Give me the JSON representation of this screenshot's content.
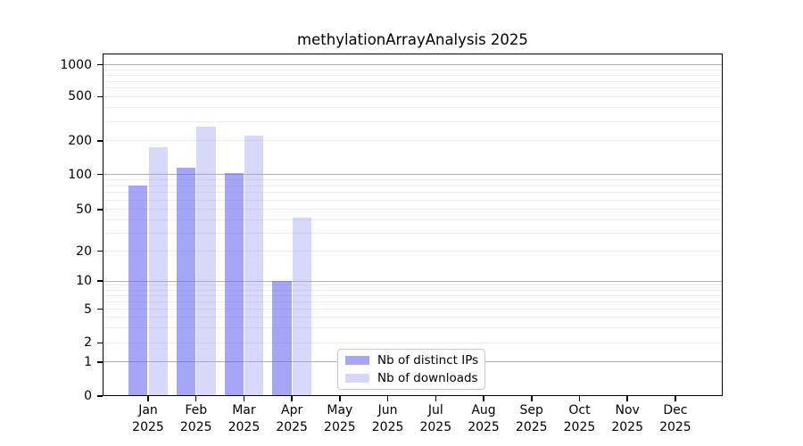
{
  "chart_data": {
    "type": "bar",
    "title": "methylationArrayAnalysis 2025",
    "x": {
      "months": [
        "Jan",
        "Feb",
        "Mar",
        "Apr",
        "May",
        "Jun",
        "Jul",
        "Aug",
        "Sep",
        "Oct",
        "Nov",
        "Dec"
      ],
      "year": "2025"
    },
    "y_ticks": [
      0,
      1,
      2,
      5,
      10,
      20,
      50,
      100,
      200,
      500,
      1000
    ],
    "ylim": [
      0,
      1270
    ],
    "y_scale": "log-like (linear segment between 0 and 1)",
    "grid": {
      "major_lines": [
        1,
        10,
        100,
        1000
      ],
      "minor_lines": "multiples 2-9 of each decade"
    },
    "series": [
      {
        "name": "Nb of distinct IPs",
        "color": "rgba(106,106,242,0.6)",
        "color_hex_on_white": "#a6a6f5",
        "values": [
          80,
          115,
          102,
          10,
          null,
          null,
          null,
          null,
          null,
          null,
          null,
          null
        ]
      },
      {
        "name": "Nb of downloads",
        "color": "rgba(158,158,243,0.4)",
        "color_hex_on_white": "#d8d8f9",
        "values": [
          175,
          270,
          225,
          42,
          null,
          null,
          null,
          null,
          null,
          null,
          null,
          null
        ]
      }
    ],
    "legend": {
      "position": "inside plot, bottom center-left",
      "entries": [
        "Nb of distinct IPs",
        "Nb of downloads"
      ]
    }
  }
}
